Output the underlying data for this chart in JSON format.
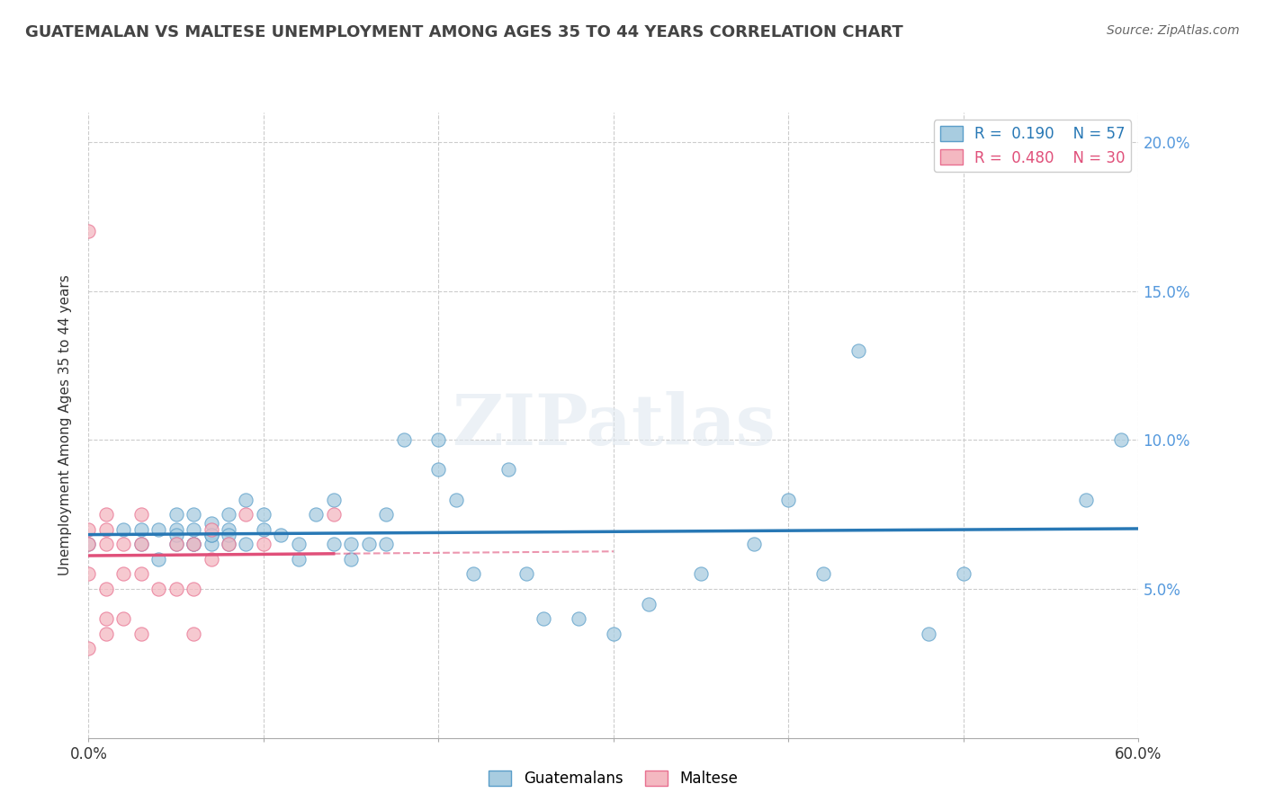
{
  "title": "GUATEMALAN VS MALTESE UNEMPLOYMENT AMONG AGES 35 TO 44 YEARS CORRELATION CHART",
  "source": "Source: ZipAtlas.com",
  "ylabel": "Unemployment Among Ages 35 to 44 years",
  "xlim": [
    0.0,
    0.6
  ],
  "ylim": [
    0.0,
    0.21
  ],
  "xticks": [
    0.0,
    0.1,
    0.2,
    0.3,
    0.4,
    0.5,
    0.6
  ],
  "xticklabels_bottom": [
    "0.0%",
    "",
    "",
    "",
    "",
    "",
    "60.0%"
  ],
  "yticks": [
    0.05,
    0.1,
    0.15,
    0.2
  ],
  "yticklabels_right": [
    "5.0%",
    "10.0%",
    "15.0%",
    "20.0%"
  ],
  "guatemalan_R": 0.19,
  "guatemalan_N": 57,
  "maltese_R": 0.48,
  "maltese_N": 30,
  "watermark": "ZIPatlas",
  "guatemalan_color": "#a8cce0",
  "maltese_color": "#f4b8c1",
  "guatemalan_edge_color": "#5a9ec9",
  "maltese_edge_color": "#e87090",
  "guatemalan_line_color": "#2878b5",
  "maltese_line_color": "#e0507a",
  "guatemalan_scatter_x": [
    0.0,
    0.02,
    0.03,
    0.03,
    0.04,
    0.04,
    0.05,
    0.05,
    0.05,
    0.05,
    0.06,
    0.06,
    0.06,
    0.06,
    0.07,
    0.07,
    0.07,
    0.07,
    0.08,
    0.08,
    0.08,
    0.08,
    0.09,
    0.09,
    0.1,
    0.1,
    0.11,
    0.12,
    0.12,
    0.13,
    0.14,
    0.14,
    0.15,
    0.15,
    0.16,
    0.17,
    0.17,
    0.18,
    0.2,
    0.2,
    0.21,
    0.22,
    0.24,
    0.25,
    0.26,
    0.28,
    0.3,
    0.32,
    0.35,
    0.38,
    0.4,
    0.42,
    0.44,
    0.48,
    0.5,
    0.57,
    0.59
  ],
  "guatemalan_scatter_y": [
    0.065,
    0.07,
    0.065,
    0.07,
    0.06,
    0.07,
    0.065,
    0.07,
    0.075,
    0.068,
    0.065,
    0.07,
    0.075,
    0.065,
    0.065,
    0.068,
    0.072,
    0.068,
    0.065,
    0.07,
    0.068,
    0.075,
    0.065,
    0.08,
    0.07,
    0.075,
    0.068,
    0.065,
    0.06,
    0.075,
    0.065,
    0.08,
    0.06,
    0.065,
    0.065,
    0.065,
    0.075,
    0.1,
    0.1,
    0.09,
    0.08,
    0.055,
    0.09,
    0.055,
    0.04,
    0.04,
    0.035,
    0.045,
    0.055,
    0.065,
    0.08,
    0.055,
    0.13,
    0.035,
    0.055,
    0.08,
    0.1
  ],
  "maltese_scatter_x": [
    0.0,
    0.0,
    0.0,
    0.0,
    0.0,
    0.01,
    0.01,
    0.01,
    0.01,
    0.01,
    0.01,
    0.02,
    0.02,
    0.02,
    0.03,
    0.03,
    0.03,
    0.03,
    0.04,
    0.05,
    0.05,
    0.06,
    0.06,
    0.06,
    0.07,
    0.07,
    0.08,
    0.09,
    0.1,
    0.14
  ],
  "maltese_scatter_y": [
    0.17,
    0.07,
    0.065,
    0.055,
    0.03,
    0.065,
    0.07,
    0.075,
    0.05,
    0.04,
    0.035,
    0.065,
    0.055,
    0.04,
    0.065,
    0.075,
    0.055,
    0.035,
    0.05,
    0.065,
    0.05,
    0.065,
    0.05,
    0.035,
    0.07,
    0.06,
    0.065,
    0.075,
    0.065,
    0.075
  ],
  "background_color": "#ffffff",
  "grid_color": "#cccccc",
  "title_color": "#444444",
  "source_color": "#666666"
}
